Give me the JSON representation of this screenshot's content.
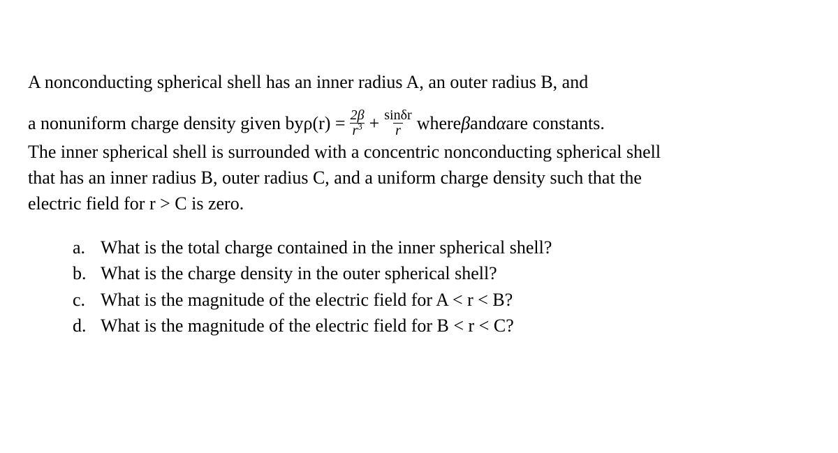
{
  "intro": {
    "line1": "A nonconducting spherical shell has an inner radius A, an outer radius B, and",
    "line2_pre": "a nonuniform charge density given by ",
    "rho_expr_prefix": "ρ(r) = ",
    "frac1_num": "2β",
    "frac1_den_r": "r",
    "frac1_den_exp": "3",
    "plus": " + ",
    "frac2_num": "sinδr",
    "frac2_den": "r",
    "line2_post_a": " where ",
    "beta": "β",
    "and": " and ",
    "alpha": "α",
    "line2_post_b": " are constants.",
    "line3": "The inner spherical shell is surrounded with a concentric nonconducting spherical shell",
    "line4": "that has an inner radius B, outer radius C, and a uniform charge density such that the",
    "line5": "electric field for r > C is zero."
  },
  "questions": [
    {
      "letter": "a.",
      "text": "What is the total charge contained in the inner spherical shell?"
    },
    {
      "letter": "b.",
      "text": "What is the charge density in the outer spherical shell?"
    },
    {
      "letter": "c.",
      "text": "What is the magnitude of the electric field for A < r < B?"
    },
    {
      "letter": "d.",
      "text": "What is the magnitude of the electric field for B < r < C?"
    }
  ]
}
